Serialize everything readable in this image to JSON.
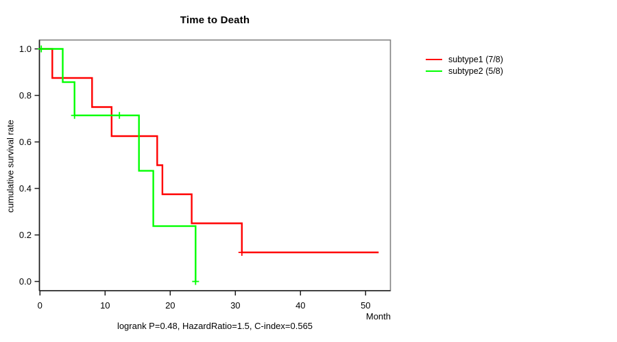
{
  "title": "Time to Death",
  "xlabel": "Month",
  "ylabel": "cumulative survival rate",
  "footnote": "logrank P=0.48, HazardRatio=1.5, C-index=0.565",
  "colors": {
    "subtype1": "#FF0000",
    "subtype2": "#00FF00",
    "box": "#808080",
    "axis": "#1a1a1a"
  },
  "legend": [
    {
      "label": "subtype1 (7/8)",
      "color": "#FF0000"
    },
    {
      "label": "subtype2 (5/8)",
      "color": "#00FF00"
    }
  ],
  "chart_data": {
    "type": "line",
    "subtype": "kaplan-meier-step",
    "title": "Time to Death",
    "xlabel": "Month",
    "ylabel": "cumulative survival rate",
    "annotation": "logrank P=0.48, HazardRatio=1.5, C-index=0.565",
    "xlim": [
      0,
      53.8
    ],
    "ylim": [
      0,
      1
    ],
    "xticks": [
      0,
      10,
      20,
      30,
      40,
      50
    ],
    "yticks": [
      0.0,
      0.2,
      0.4,
      0.6,
      0.8,
      1.0
    ],
    "grid": false,
    "legend_position": "right-outside",
    "series": [
      {
        "name": "subtype1 (7/8)",
        "color": "#FF0000",
        "steps": [
          [
            0,
            1.0
          ],
          [
            1.9,
            0.875
          ],
          [
            8,
            0.75
          ],
          [
            11,
            0.625
          ],
          [
            18,
            0.5
          ],
          [
            18.8,
            0.375
          ],
          [
            23.3,
            0.25
          ],
          [
            31,
            0.125
          ]
        ],
        "end": 52,
        "censors": [
          [
            31,
            0.125
          ]
        ]
      },
      {
        "name": "subtype2 (5/8)",
        "color": "#00FF00",
        "steps": [
          [
            0,
            1.0
          ],
          [
            3.5,
            0.857
          ],
          [
            5.3,
            0.714
          ],
          [
            15.2,
            0.476
          ],
          [
            17.4,
            0.238
          ],
          [
            23.9,
            0.0
          ]
        ],
        "end": 23.9,
        "censors": [
          [
            0.2,
            1.0
          ],
          [
            5.3,
            0.714
          ],
          [
            12.2,
            0.714
          ],
          [
            23.9,
            0.0
          ]
        ]
      }
    ]
  }
}
